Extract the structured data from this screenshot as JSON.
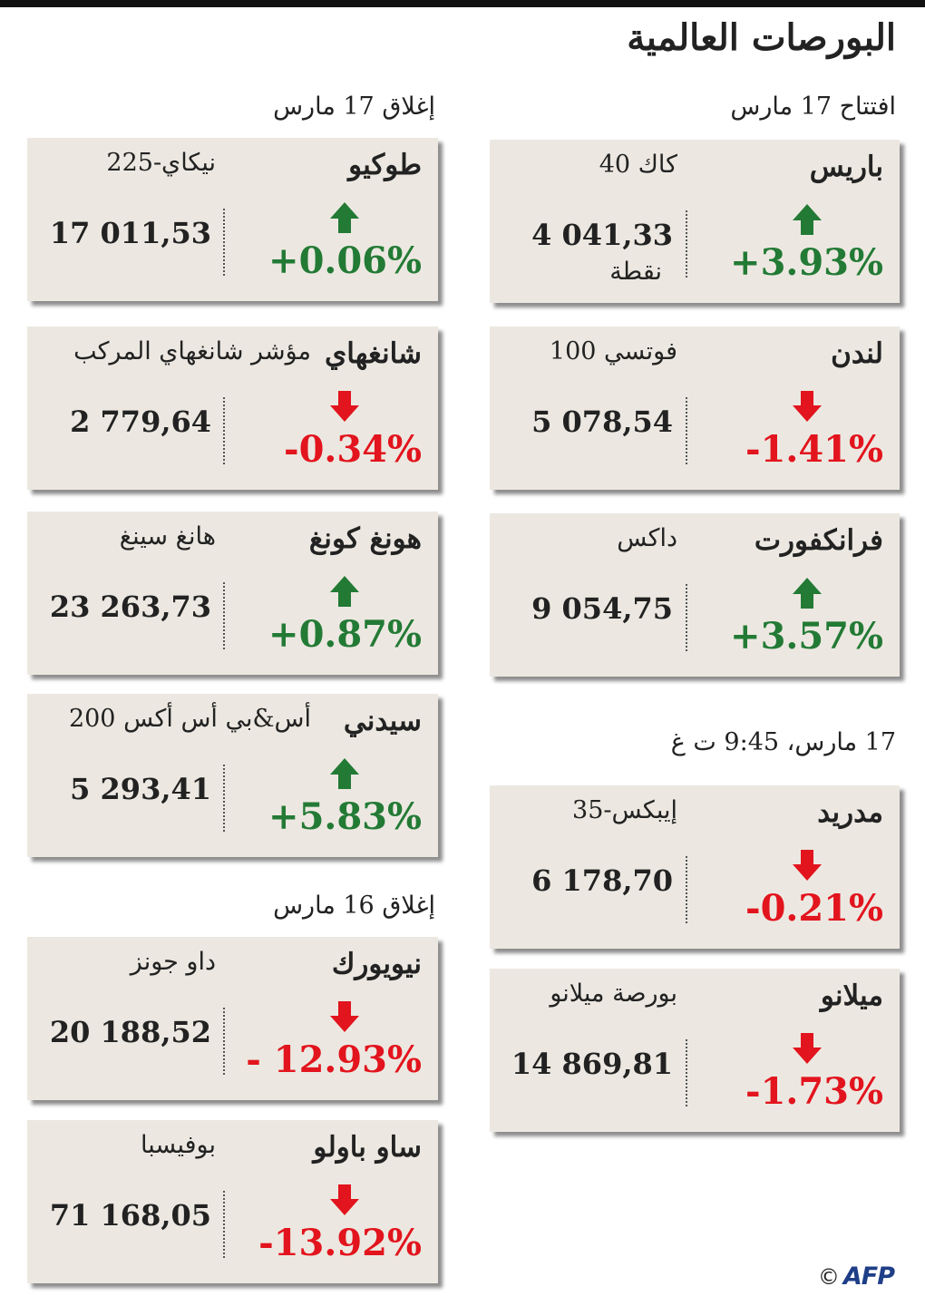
{
  "title": "البورصات العالمية",
  "sections": {
    "close17": "إغلاق 17 مارس",
    "open17": "افتتاح 17 مارس",
    "close16": "إغلاق 16 مارس",
    "time17": "17 مارس، 9:45 ت غ"
  },
  "colors": {
    "up": "#237a35",
    "down": "#e2141d",
    "card": "#ece8e1"
  },
  "markets": {
    "tokyo": {
      "city": "طوكيو",
      "index": "نيكاي-225",
      "value": "17 011,53",
      "change": "+0.06%",
      "direction": "up"
    },
    "shanghai": {
      "city": "شانغهاي",
      "index": "مؤشر شانغهاي المركب",
      "value": "2 779,64",
      "change": "-0.34%",
      "direction": "down"
    },
    "hongkong": {
      "city": "هونغ كونغ",
      "index": "هانغ سينغ",
      "value": "23 263,73",
      "change": "+0.87%",
      "direction": "up"
    },
    "sydney": {
      "city": "سيدني",
      "index": "أس&بي أس أكس 200",
      "value": "5 293,41",
      "change": "+5.83%",
      "direction": "up"
    },
    "newyork": {
      "city": "نيويورك",
      "index": "داو جونز",
      "value": "20 188,52",
      "change": "- 12.93%",
      "direction": "down"
    },
    "saopaulo": {
      "city": "ساو باولو",
      "index": "بوفيسبا",
      "value": "71 168,05",
      "change": "-13.92%",
      "direction": "down"
    },
    "paris": {
      "city": "باريس",
      "index": "كاك 40",
      "value": "4 041,33",
      "unit": "نقطة",
      "change": "+3.93%",
      "direction": "up"
    },
    "london": {
      "city": "لندن",
      "index": "فوتسي 100",
      "value": "5 078,54",
      "change": "-1.41%",
      "direction": "down"
    },
    "frankfurt": {
      "city": "فرانكفورت",
      "index": "داكس",
      "value": "9 054,75",
      "change": "+3.57%",
      "direction": "up"
    },
    "madrid": {
      "city": "مدريد",
      "index": "إيبكس-35",
      "value": "6 178,70",
      "change": "-0.21%",
      "direction": "down"
    },
    "milan": {
      "city": "ميلانو",
      "index": "بورصة ميلانو",
      "value": "14 869,81",
      "change": "-1.73%",
      "direction": "down"
    }
  },
  "footer": {
    "copyright": "©",
    "logo": "AFP"
  }
}
